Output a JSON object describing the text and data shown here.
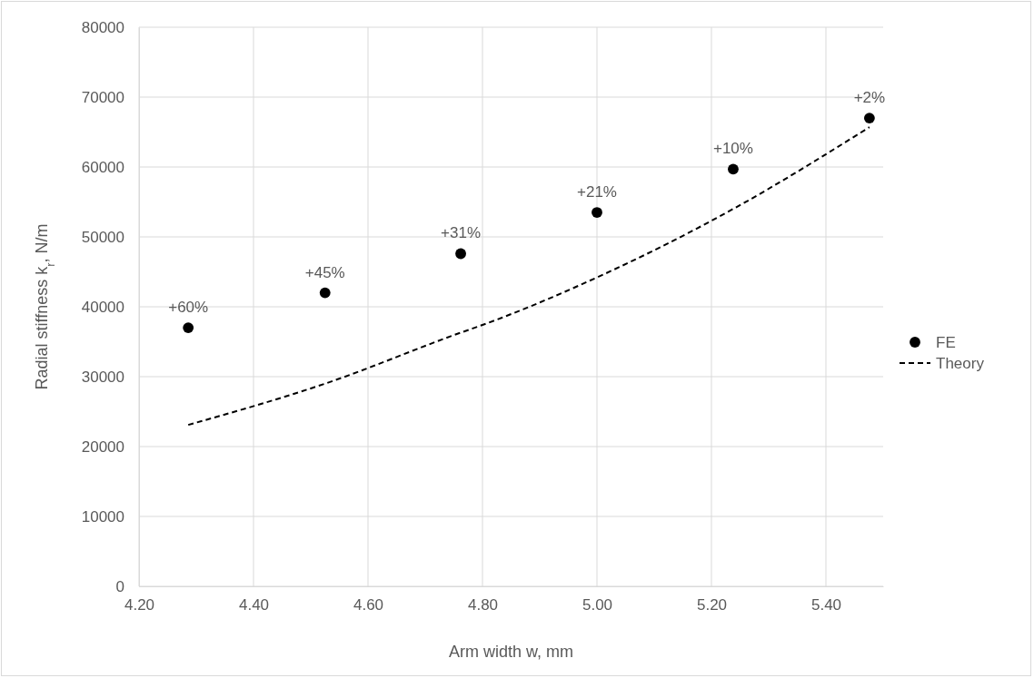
{
  "chart_data": {
    "type": "scatter",
    "xlabel": "Arm width w, mm",
    "ylabel": "Radial stiffness k$_{r}$, N/m",
    "xlim": [
      4.2,
      5.5
    ],
    "xticks": [
      {
        "value": 4.2,
        "label": "4.20"
      },
      {
        "value": 4.4,
        "label": "4.40"
      },
      {
        "value": 4.6,
        "label": "4.60"
      },
      {
        "value": 4.8,
        "label": "4.80"
      },
      {
        "value": 5.0,
        "label": "5.00"
      },
      {
        "value": 5.2,
        "label": "5.20"
      },
      {
        "value": 5.4,
        "label": "5.40"
      }
    ],
    "ylim": [
      0,
      80000
    ],
    "yticks": [
      0,
      10000,
      20000,
      30000,
      40000,
      50000,
      60000,
      70000,
      80000
    ],
    "grid": true,
    "legend": "right",
    "annotations": [
      {
        "text": "+60%",
        "x": 4.286,
        "y": 37000
      },
      {
        "text": "+45%",
        "x": 4.525,
        "y": 42000
      },
      {
        "text": "+31%",
        "x": 4.762,
        "y": 47600
      },
      {
        "text": "+21%",
        "x": 5.0,
        "y": 53500
      },
      {
        "text": "+10%",
        "x": 5.238,
        "y": 59700
      },
      {
        "text": "+2%",
        "x": 5.476,
        "y": 67000
      }
    ],
    "series": [
      {
        "name": "FE",
        "marker": "circle",
        "color": "#000000",
        "x": [
          4.286,
          4.525,
          4.762,
          5.0,
          5.238,
          5.476
        ],
        "values": [
          37000,
          42000,
          47600,
          53500,
          59700,
          67000
        ]
      },
      {
        "name": "Theory",
        "type": "line",
        "marker": "none",
        "line_style": "dashed",
        "color": "#000000",
        "x": [
          4.286,
          4.525,
          4.762,
          4.8,
          5.0,
          5.238,
          5.476
        ],
        "values": [
          23100,
          29000,
          36300,
          37400,
          44200,
          54000,
          65700
        ]
      }
    ]
  }
}
